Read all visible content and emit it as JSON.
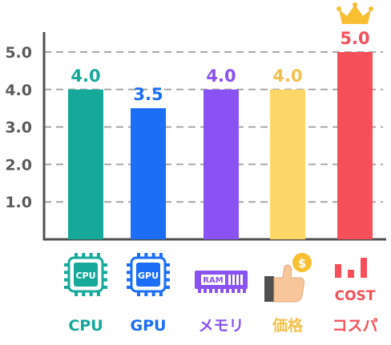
{
  "chart_data": {
    "type": "bar",
    "title": "",
    "xlabel": "",
    "ylabel": "",
    "categories": [
      "CPU",
      "GPU",
      "メモリ",
      "価格",
      "コスパ"
    ],
    "values": [
      4.0,
      3.5,
      4.0,
      4.0,
      5.0
    ],
    "value_labels": [
      "4.0",
      "3.5",
      "4.0",
      "4.0",
      "5.0"
    ],
    "ylim": [
      0,
      5.5
    ],
    "yticks": [
      1.0,
      2.0,
      3.0,
      4.0,
      5.0
    ],
    "ytick_labels": [
      "1.0",
      "2.0",
      "3.0",
      "4.0",
      "5.0"
    ],
    "grid": true,
    "grid_style": "dashed",
    "colors": [
      "#16a99a",
      "#1b6ef5",
      "#8a52f2",
      "#fcd768",
      "#f5505a"
    ],
    "label_colors": [
      "#16a99a",
      "#1b6ef5",
      "#8a52f2",
      "#f2c14e",
      "#f5505a"
    ],
    "icons": [
      {
        "name": "cpu-chip-icon",
        "text": "CPU"
      },
      {
        "name": "gpu-chip-icon",
        "text": "GPU"
      },
      {
        "name": "ram-module-icon",
        "text": "RAM"
      },
      {
        "name": "thumbs-up-coin-icon",
        "text": "$"
      },
      {
        "name": "cost-bar-icon",
        "text": "COST"
      }
    ],
    "highlight": {
      "index": 4,
      "icon": "crown-icon"
    }
  }
}
